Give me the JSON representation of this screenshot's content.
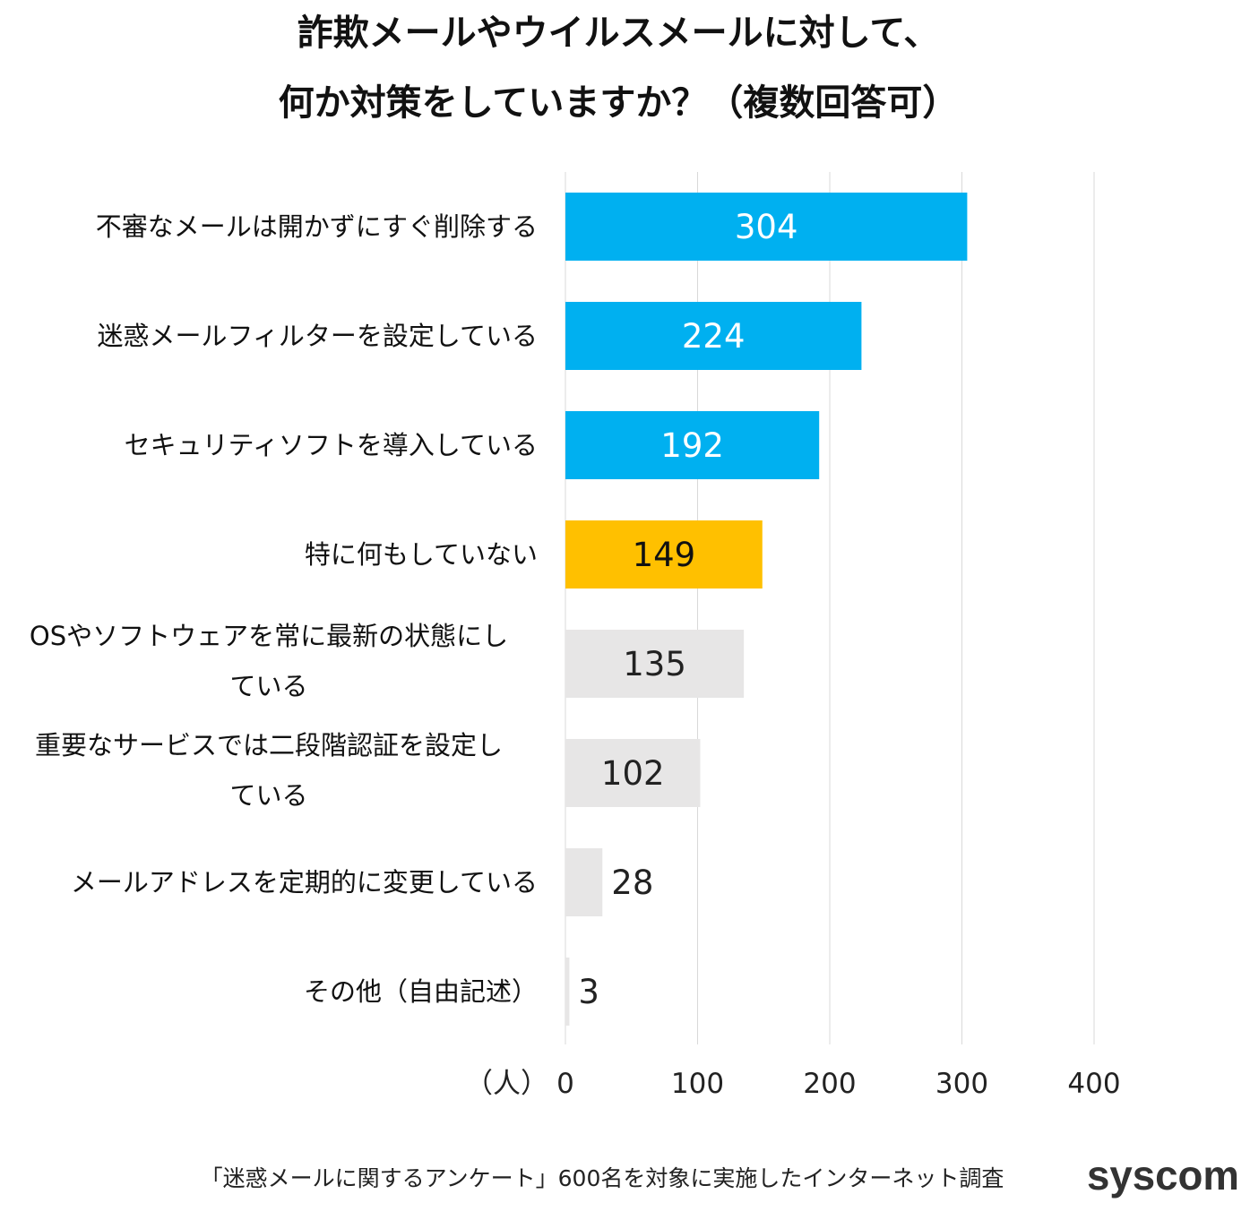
{
  "chart_data": {
    "type": "bar",
    "orientation": "horizontal",
    "title": [
      "詐欺メールやウイルスメールに対して、",
      "何か対策をしていますか？（複数回答可）"
    ],
    "categories": [
      [
        "不審なメールは開かずにすぐ削除する"
      ],
      [
        "迷惑メールフィルターを設定している"
      ],
      [
        "セキュリティソフトを導入している"
      ],
      [
        "特に何もしていない"
      ],
      [
        "OSやソフトウェアを常に最新の状態にし",
        "ている"
      ],
      [
        "重要なサービスでは二段階認証を設定し",
        "ている"
      ],
      [
        "メールアドレスを定期的に変更している"
      ],
      [
        "その他（自由記述）"
      ]
    ],
    "values": [
      304,
      224,
      192,
      149,
      135,
      102,
      28,
      3
    ],
    "bar_colors": [
      "#00b0f0",
      "#00b0f0",
      "#00b0f0",
      "#ffc000",
      "#e7e6e6",
      "#e7e6e6",
      "#e7e6e6",
      "#e7e6e6"
    ],
    "label_colors": [
      "#ffffff",
      "#ffffff",
      "#ffffff",
      "#111111",
      "#222222",
      "#222222",
      "#222222",
      "#222222"
    ],
    "xlim": [
      0,
      400
    ],
    "xticks": [
      "0",
      "100",
      "200",
      "300",
      "400"
    ],
    "xunit": "（人）",
    "grid": true
  },
  "footer": {
    "note": "「迷惑メールに関するアンケート」600名を対象に実施したインターネット調査",
    "logo": "syscom"
  }
}
